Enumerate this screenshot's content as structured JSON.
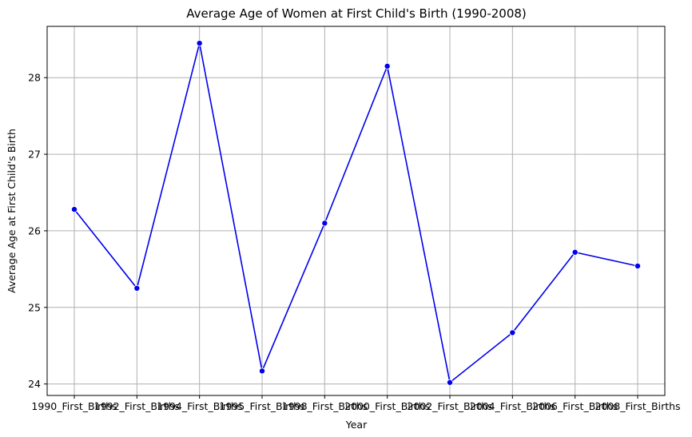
{
  "chart_data": {
    "type": "line",
    "title": "Average Age of Women at First Child's Birth (1990-2008)",
    "xlabel": "Year",
    "ylabel": "Average Age at First Child's Birth",
    "categories": [
      "1990_First_Births",
      "1992_First_Births",
      "1994_First_Births",
      "1995_First_Births",
      "1998_First_Births",
      "2000_First_Births",
      "2002_First_Births",
      "2004_First_Births",
      "2006_First_Births",
      "2008_First_Births"
    ],
    "series": [
      {
        "values": [
          26.28,
          25.25,
          28.45,
          24.17,
          26.1,
          28.15,
          24.02,
          24.67,
          25.72,
          25.54
        ],
        "color": "#0000ee",
        "marker": "circle"
      }
    ],
    "ylim": [
      23.85,
      28.67
    ],
    "yticks": [
      24,
      25,
      26,
      27,
      28
    ],
    "grid": true,
    "legend": "none"
  }
}
